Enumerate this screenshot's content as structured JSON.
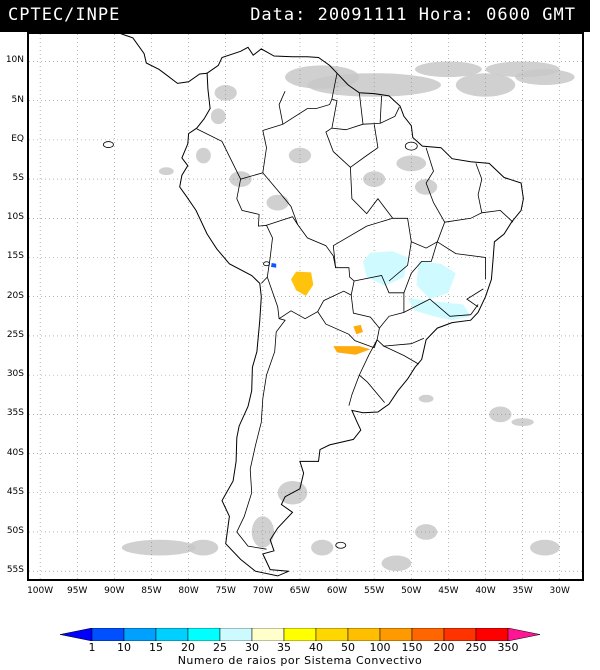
{
  "header": {
    "source": "CPTEC/INPE",
    "datetime": "Data: 20091111 Hora: 0600 GMT"
  },
  "map": {
    "lat_labels": [
      "10N",
      "5N",
      "EQ",
      "5S",
      "10S",
      "15S",
      "20S",
      "25S",
      "30S",
      "35S",
      "40S",
      "45S",
      "50S",
      "55S"
    ],
    "lat_values": [
      10,
      5,
      0,
      -5,
      -10,
      -15,
      -20,
      -25,
      -30,
      -35,
      -40,
      -45,
      -50,
      -55
    ],
    "lon_labels": [
      "100W",
      "95W",
      "90W",
      "85W",
      "80W",
      "75W",
      "70W",
      "65W",
      "60W",
      "55W",
      "50W",
      "45W",
      "40W",
      "35W",
      "30W"
    ],
    "lon_values": [
      -100,
      -95,
      -90,
      -85,
      -80,
      -75,
      -70,
      -65,
      -60,
      -55,
      -50,
      -45,
      -40,
      -35,
      -30
    ],
    "lon_range": [
      -101.5,
      -27
    ],
    "lat_range": [
      -56,
      13.5
    ],
    "colors": {
      "land_outline": "#000000",
      "cloud_gray": "#c8c8c8",
      "grid": "#888888"
    },
    "convective_systems": [
      {
        "name": "light-cyan-region-north",
        "color": "#ccfaff",
        "lon": -53.5,
        "lat": -16.5,
        "value_class": "25-30"
      },
      {
        "name": "light-cyan-region-east",
        "color": "#ccfaff",
        "lon": -45.5,
        "lat": -17.5,
        "value_class": "25-30"
      },
      {
        "name": "light-cyan-region-southeast",
        "color": "#ccfaff",
        "lon": -45.5,
        "lat": -21.0,
        "value_class": "25-30"
      },
      {
        "name": "yellow-orange-bolivia",
        "color": "#ffbf00",
        "lon": -64.5,
        "lat": -18.0,
        "value_class": "50-100"
      },
      {
        "name": "orange-paraguay-north",
        "color": "#ffa500",
        "lon": -57.0,
        "lat": -24.2,
        "value_class": "100-150"
      },
      {
        "name": "orange-paraguay-south",
        "color": "#ffa500",
        "lon": -58.0,
        "lat": -26.8,
        "value_class": "100-150"
      },
      {
        "name": "blue-titicaca",
        "color": "#0050ff",
        "lon": -68.5,
        "lat": -16.0,
        "value_class": "10-15"
      }
    ]
  },
  "colorbar": {
    "labels": [
      "1",
      "10",
      "15",
      "20",
      "25",
      "30",
      "35",
      "40",
      "50",
      "100",
      "150",
      "200",
      "250",
      "350"
    ],
    "colors": [
      "#0000ff",
      "#0050ff",
      "#00a0ff",
      "#00d0ff",
      "#00ffff",
      "#ccfaff",
      "#ffffcc",
      "#ffff00",
      "#ffd700",
      "#ffbf00",
      "#ff9900",
      "#ff6600",
      "#ff3300",
      "#ff0000",
      "#ff1493"
    ],
    "title": "Numero de raios por Sistema Convectivo"
  }
}
